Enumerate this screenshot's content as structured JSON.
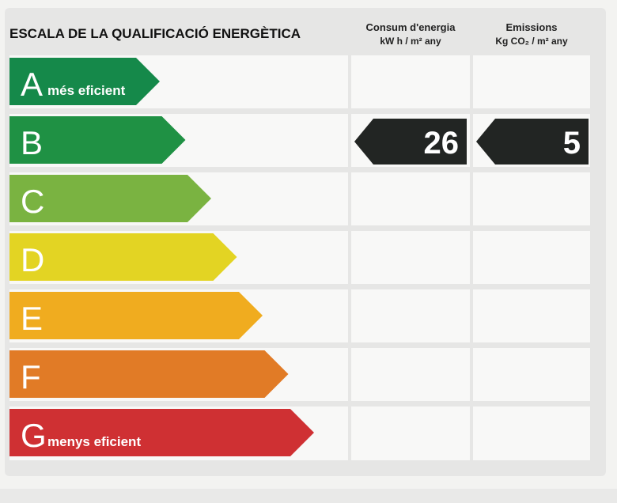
{
  "header": {
    "title": "ESCALA DE LA QUALIFICACIÓ ENERGÈTICA",
    "consum_title": "Consum d'energia",
    "consum_unit": "kW h / m² any",
    "emissions_title": "Emissions",
    "emissions_unit": "Kg CO₂ / m² any"
  },
  "chart_data": {
    "type": "bar",
    "categories": [
      "A",
      "B",
      "C",
      "D",
      "E",
      "F",
      "G"
    ],
    "category_notes": {
      "A": "més eficient",
      "G": "menys eficient"
    },
    "bar_colors": [
      "#15894a",
      "#1f9144",
      "#7ab341",
      "#e3d423",
      "#f0ac1f",
      "#e17b26",
      "#cf3033"
    ],
    "ratings": [
      {
        "label": "Consum d'energia",
        "unit": "kW h / m² any",
        "class": "B",
        "value": 26
      },
      {
        "label": "Emissions",
        "unit": "Kg CO₂ / m² any",
        "class": "B",
        "value": 5
      }
    ],
    "marker_color": "#222523"
  }
}
